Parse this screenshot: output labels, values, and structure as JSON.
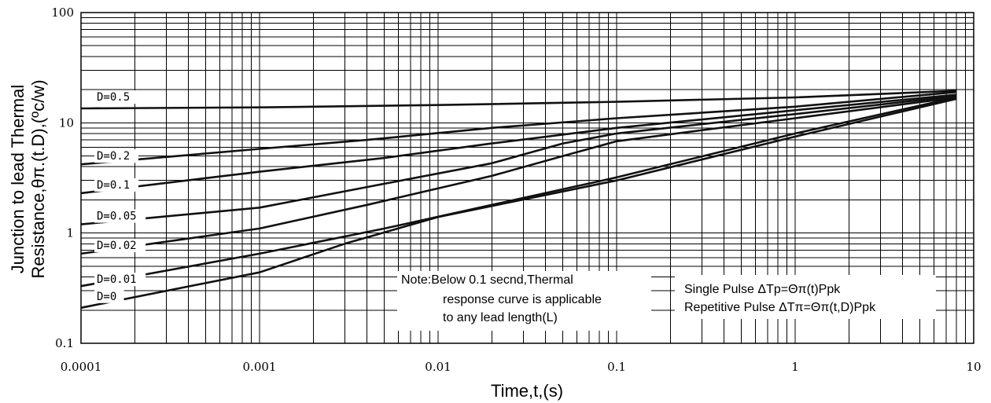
{
  "chart_data": {
    "type": "line",
    "xlabel": "Time,t,(s)",
    "ylabel_lines": [
      "Junction to lead Thermal",
      "Resistance,θπ.(t.D),(ºc/w)"
    ],
    "x_scale": "log",
    "y_scale": "log",
    "xlim": [
      0.0001,
      10
    ],
    "ylim": [
      0.1,
      100
    ],
    "grid": true,
    "x_tick_labels": [
      "0.0001",
      "0.001",
      "0.01",
      "0.1",
      "1",
      "10"
    ],
    "y_tick_labels": [
      "0.1",
      "1",
      "10",
      "100"
    ],
    "series": [
      {
        "name": "D=0.5",
        "points": [
          [
            0.0001,
            13.5
          ],
          [
            0.001,
            13.8
          ],
          [
            0.01,
            14.5
          ],
          [
            0.1,
            15.5
          ],
          [
            1,
            17
          ],
          [
            8,
            19.5
          ]
        ]
      },
      {
        "name": "D=0.2",
        "points": [
          [
            0.0001,
            4.2
          ],
          [
            0.001,
            5.8
          ],
          [
            0.004,
            7.0
          ],
          [
            0.02,
            9.0
          ],
          [
            0.1,
            11.0
          ],
          [
            1,
            14.0
          ],
          [
            8,
            19.0
          ]
        ]
      },
      {
        "name": "D=0.1",
        "points": [
          [
            0.0001,
            2.3
          ],
          [
            0.001,
            3.6
          ],
          [
            0.005,
            4.8
          ],
          [
            0.02,
            6.5
          ],
          [
            0.1,
            9.0
          ],
          [
            1,
            13.0
          ],
          [
            8,
            18.0
          ]
        ]
      },
      {
        "name": "D=0.05",
        "points": [
          [
            0.0001,
            1.2
          ],
          [
            0.001,
            1.7
          ],
          [
            0.005,
            2.8
          ],
          [
            0.02,
            4.3
          ],
          [
            0.05,
            6.5
          ],
          [
            0.1,
            8.0
          ],
          [
            1,
            12.0
          ],
          [
            8,
            17.5
          ]
        ]
      },
      {
        "name": "D=0.02",
        "points": [
          [
            0.0001,
            0.65
          ],
          [
            0.001,
            1.1
          ],
          [
            0.004,
            1.8
          ],
          [
            0.02,
            3.3
          ],
          [
            0.05,
            5.0
          ],
          [
            0.1,
            6.8
          ],
          [
            1,
            11.0
          ],
          [
            8,
            17.0
          ]
        ]
      },
      {
        "name": "D=0.01",
        "points": [
          [
            0.0001,
            0.33
          ],
          [
            0.001,
            0.65
          ],
          [
            0.005,
            1.1
          ],
          [
            0.02,
            1.8
          ],
          [
            0.1,
            3.2
          ],
          [
            1,
            8.0
          ],
          [
            8,
            17.0
          ]
        ]
      },
      {
        "name": "D=0",
        "points": [
          [
            0.0001,
            0.21
          ],
          [
            0.001,
            0.44
          ],
          [
            0.003,
            0.8
          ],
          [
            0.01,
            1.4
          ],
          [
            0.1,
            3.0
          ],
          [
            1,
            7.5
          ],
          [
            8,
            16.5
          ]
        ]
      }
    ],
    "annotations": [
      {
        "id": "note",
        "lines": [
          "Note:Below 0.1 secnd,Thermal",
          "response curve is applicable",
          "to any lead length(L)"
        ]
      },
      {
        "id": "pulse",
        "lines": [
          "Single Pulse ΔTp=Θπ(t)Ppk",
          "Repetitive Pulse ΔTπ=Θπ(t,D)Ppk"
        ]
      }
    ]
  }
}
